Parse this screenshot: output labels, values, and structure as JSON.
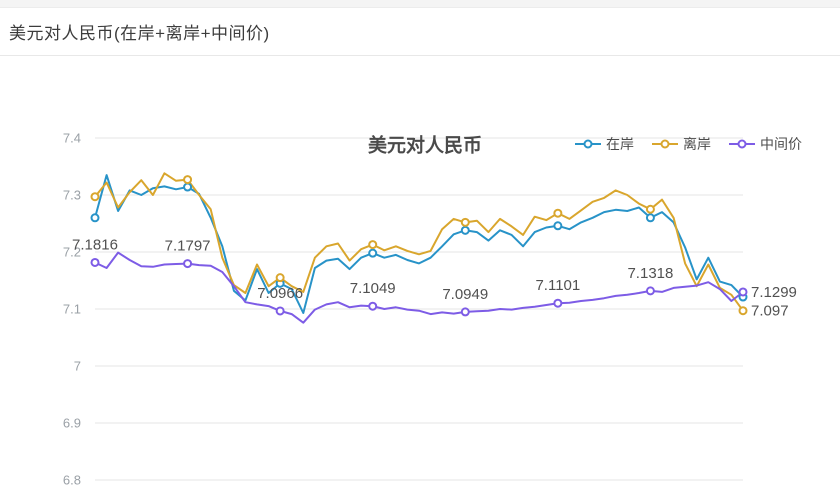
{
  "header": {
    "title": "美元对人民币(在岸+离岸+中间价)"
  },
  "chart": {
    "title": "美元对人民币",
    "legend": [
      {
        "label": "在岸",
        "color": "#2893c8"
      },
      {
        "label": "离岸",
        "color": "#d9a62d"
      },
      {
        "label": "中间价",
        "color": "#7d5ce6"
      }
    ]
  },
  "chart_data": {
    "type": "line",
    "title": "美元对人民币",
    "ylabel": "",
    "xlabel": "",
    "ylim": [
      6.8,
      7.4
    ],
    "yticks": [
      "7.4",
      "7.3",
      "7.2",
      "7.1",
      "7",
      "6.9",
      "6.8"
    ],
    "ytick_values": [
      7.4,
      7.3,
      7.2,
      7.1,
      7.0,
      6.9,
      6.8
    ],
    "grid": true,
    "legend_position": "top-right",
    "marker_interval": 8,
    "colors": {
      "grid_line": "#e6e6e6",
      "axis_label": "#9aa0a6",
      "value_label": "#515151"
    },
    "series": [
      {
        "name": "在岸",
        "color": "#2893c8",
        "values": [
          7.26,
          7.335,
          7.272,
          7.308,
          7.3,
          7.312,
          7.315,
          7.31,
          7.314,
          7.302,
          7.26,
          7.21,
          7.132,
          7.115,
          7.17,
          7.128,
          7.145,
          7.135,
          7.093,
          7.172,
          7.185,
          7.188,
          7.17,
          7.19,
          7.198,
          7.19,
          7.195,
          7.186,
          7.18,
          7.19,
          7.21,
          7.231,
          7.238,
          7.235,
          7.22,
          7.238,
          7.23,
          7.21,
          7.235,
          7.243,
          7.246,
          7.24,
          7.252,
          7.26,
          7.27,
          7.274,
          7.272,
          7.278,
          7.26,
          7.27,
          7.252,
          7.208,
          7.152,
          7.19,
          7.148,
          7.142,
          7.121
        ],
        "point_labels": [],
        "end_label": ""
      },
      {
        "name": "离岸",
        "color": "#d9a62d",
        "values": [
          7.297,
          7.322,
          7.278,
          7.305,
          7.326,
          7.3,
          7.338,
          7.325,
          7.327,
          7.3,
          7.275,
          7.19,
          7.142,
          7.128,
          7.178,
          7.14,
          7.155,
          7.14,
          7.13,
          7.19,
          7.21,
          7.215,
          7.185,
          7.205,
          7.213,
          7.203,
          7.21,
          7.202,
          7.196,
          7.202,
          7.24,
          7.258,
          7.252,
          7.255,
          7.235,
          7.258,
          7.245,
          7.23,
          7.262,
          7.256,
          7.268,
          7.258,
          7.273,
          7.288,
          7.295,
          7.308,
          7.3,
          7.285,
          7.275,
          7.292,
          7.26,
          7.18,
          7.14,
          7.178,
          7.137,
          7.125,
          7.097
        ],
        "point_labels": [],
        "end_label": "7.097"
      },
      {
        "name": "中间价",
        "color": "#7d5ce6",
        "values": [
          7.1816,
          7.172,
          7.199,
          7.186,
          7.175,
          7.174,
          7.178,
          7.179,
          7.1797,
          7.177,
          7.176,
          7.165,
          7.14,
          7.112,
          7.108,
          7.105,
          7.0966,
          7.091,
          7.076,
          7.099,
          7.108,
          7.112,
          7.103,
          7.106,
          7.1049,
          7.1,
          7.103,
          7.099,
          7.097,
          7.091,
          7.094,
          7.092,
          7.0949,
          7.096,
          7.097,
          7.1,
          7.099,
          7.102,
          7.104,
          7.107,
          7.1101,
          7.111,
          7.114,
          7.116,
          7.119,
          7.123,
          7.125,
          7.128,
          7.1318,
          7.13,
          7.137,
          7.139,
          7.141,
          7.147,
          7.135,
          7.114,
          7.1299
        ],
        "point_labels": [
          "7.1816",
          "7.1797",
          "7.0966",
          "7.1049",
          "7.0949",
          "7.1101",
          "7.1318"
        ],
        "end_label": "7.1299"
      }
    ]
  }
}
